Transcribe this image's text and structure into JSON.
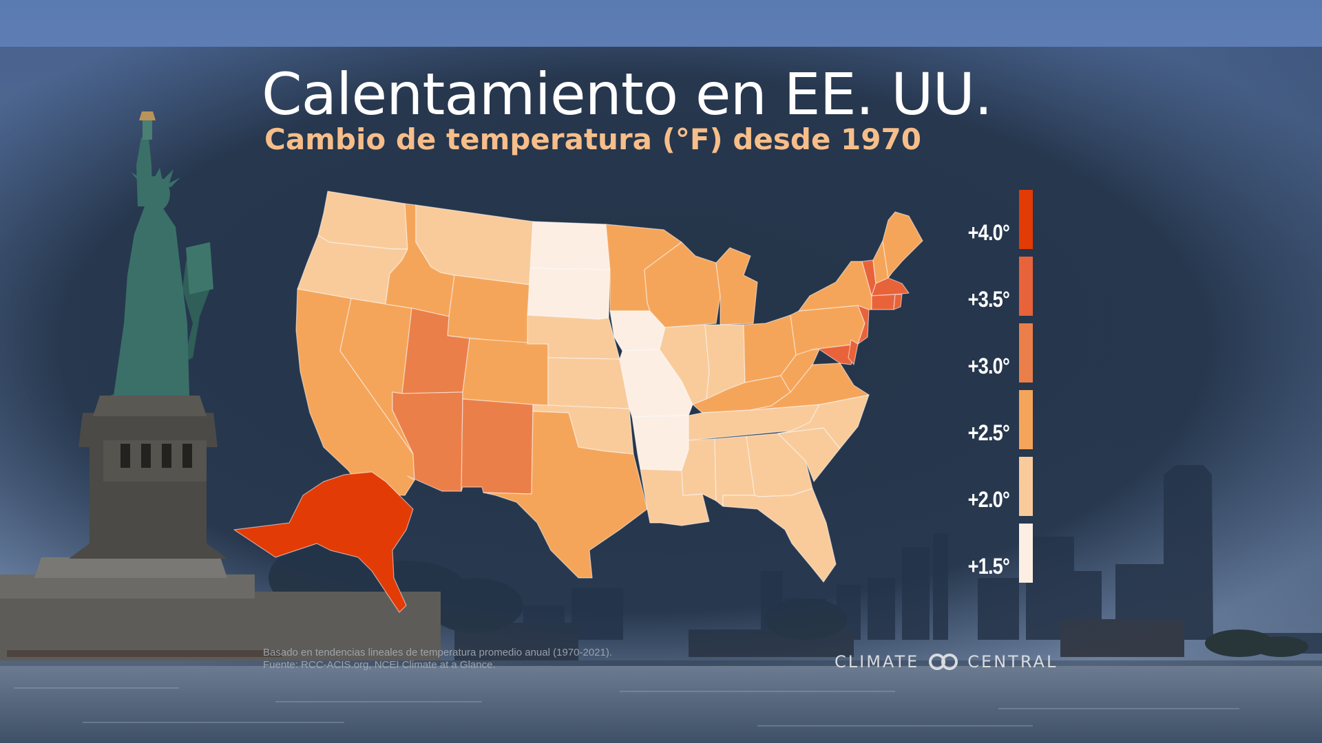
{
  "title": "Calentamiento en EE. UU.",
  "subtitle": "Cambio de temperatura (°F) desde 1970",
  "legend": [
    {
      "label": "+4.0°",
      "color": "#e23b06"
    },
    {
      "label": "+3.5°",
      "color": "#e8633a"
    },
    {
      "label": "+3.0°",
      "color": "#eb7f49"
    },
    {
      "label": "+2.5°",
      "color": "#f5a55a"
    },
    {
      "label": "+2.0°",
      "color": "#f9cb9b"
    },
    {
      "label": "+1.5°",
      "color": "#fdeee4"
    }
  ],
  "footnote_line1": "Basado en tendencias lineales de temperatura promedio anual (1970-2021).",
  "footnote_line2": "Fuente: RCC-ACIS.org, NCEI Climate at a Glance.",
  "logo_left": "CLIMATE",
  "logo_right": "CENTRAL",
  "colors": {
    "panel": "#22334a",
    "title": "#ffffff",
    "subtitle": "#f7be8a",
    "state_border": "#ffffff"
  },
  "map_regions": [
    {
      "name": "washington",
      "bin": "+2.0°"
    },
    {
      "name": "oregon",
      "bin": "+2.0°"
    },
    {
      "name": "california",
      "bin": "+2.5°"
    },
    {
      "name": "nevada",
      "bin": "+2.5°"
    },
    {
      "name": "idaho",
      "bin": "+2.5°"
    },
    {
      "name": "montana",
      "bin": "+2.0°"
    },
    {
      "name": "wyoming",
      "bin": "+2.5°"
    },
    {
      "name": "utah",
      "bin": "+3.0°"
    },
    {
      "name": "arizona",
      "bin": "+3.0°"
    },
    {
      "name": "colorado",
      "bin": "+2.5°"
    },
    {
      "name": "new-mexico",
      "bin": "+3.0°"
    },
    {
      "name": "north-dakota",
      "bin": "+1.5°"
    },
    {
      "name": "south-dakota",
      "bin": "+1.5°"
    },
    {
      "name": "nebraska",
      "bin": "+2.0°"
    },
    {
      "name": "kansas",
      "bin": "+2.0°"
    },
    {
      "name": "oklahoma",
      "bin": "+2.0°"
    },
    {
      "name": "texas",
      "bin": "+2.5°"
    },
    {
      "name": "minnesota",
      "bin": "+2.5°"
    },
    {
      "name": "iowa",
      "bin": "+1.5°"
    },
    {
      "name": "missouri",
      "bin": "+1.5°"
    },
    {
      "name": "arkansas",
      "bin": "+1.5°"
    },
    {
      "name": "louisiana",
      "bin": "+2.0°"
    },
    {
      "name": "wisconsin",
      "bin": "+2.5°"
    },
    {
      "name": "michigan",
      "bin": "+2.5°"
    },
    {
      "name": "illinois",
      "bin": "+2.0°"
    },
    {
      "name": "indiana",
      "bin": "+2.0°"
    },
    {
      "name": "ohio",
      "bin": "+2.5°"
    },
    {
      "name": "kentucky",
      "bin": "+2.5°"
    },
    {
      "name": "tennessee",
      "bin": "+2.0°"
    },
    {
      "name": "mississippi",
      "bin": "+2.0°"
    },
    {
      "name": "alabama",
      "bin": "+2.0°"
    },
    {
      "name": "georgia",
      "bin": "+2.0°"
    },
    {
      "name": "florida",
      "bin": "+2.0°"
    },
    {
      "name": "south-carolina",
      "bin": "+2.0°"
    },
    {
      "name": "north-carolina",
      "bin": "+2.0°"
    },
    {
      "name": "virginia",
      "bin": "+2.5°"
    },
    {
      "name": "west-virginia",
      "bin": "+2.5°"
    },
    {
      "name": "pennsylvania",
      "bin": "+2.5°"
    },
    {
      "name": "new-york",
      "bin": "+2.5°"
    },
    {
      "name": "maryland",
      "bin": "+3.5°"
    },
    {
      "name": "delaware",
      "bin": "+3.5°"
    },
    {
      "name": "new-jersey",
      "bin": "+3.5°"
    },
    {
      "name": "vermont",
      "bin": "+3.5°"
    },
    {
      "name": "new-hampshire",
      "bin": "+2.5°"
    },
    {
      "name": "maine",
      "bin": "+2.5°"
    },
    {
      "name": "massachusetts",
      "bin": "+3.5°"
    },
    {
      "name": "connecticut",
      "bin": "+3.5°"
    },
    {
      "name": "rhode-island",
      "bin": "+3.5°"
    },
    {
      "name": "alaska",
      "bin": "+4.0°"
    }
  ]
}
